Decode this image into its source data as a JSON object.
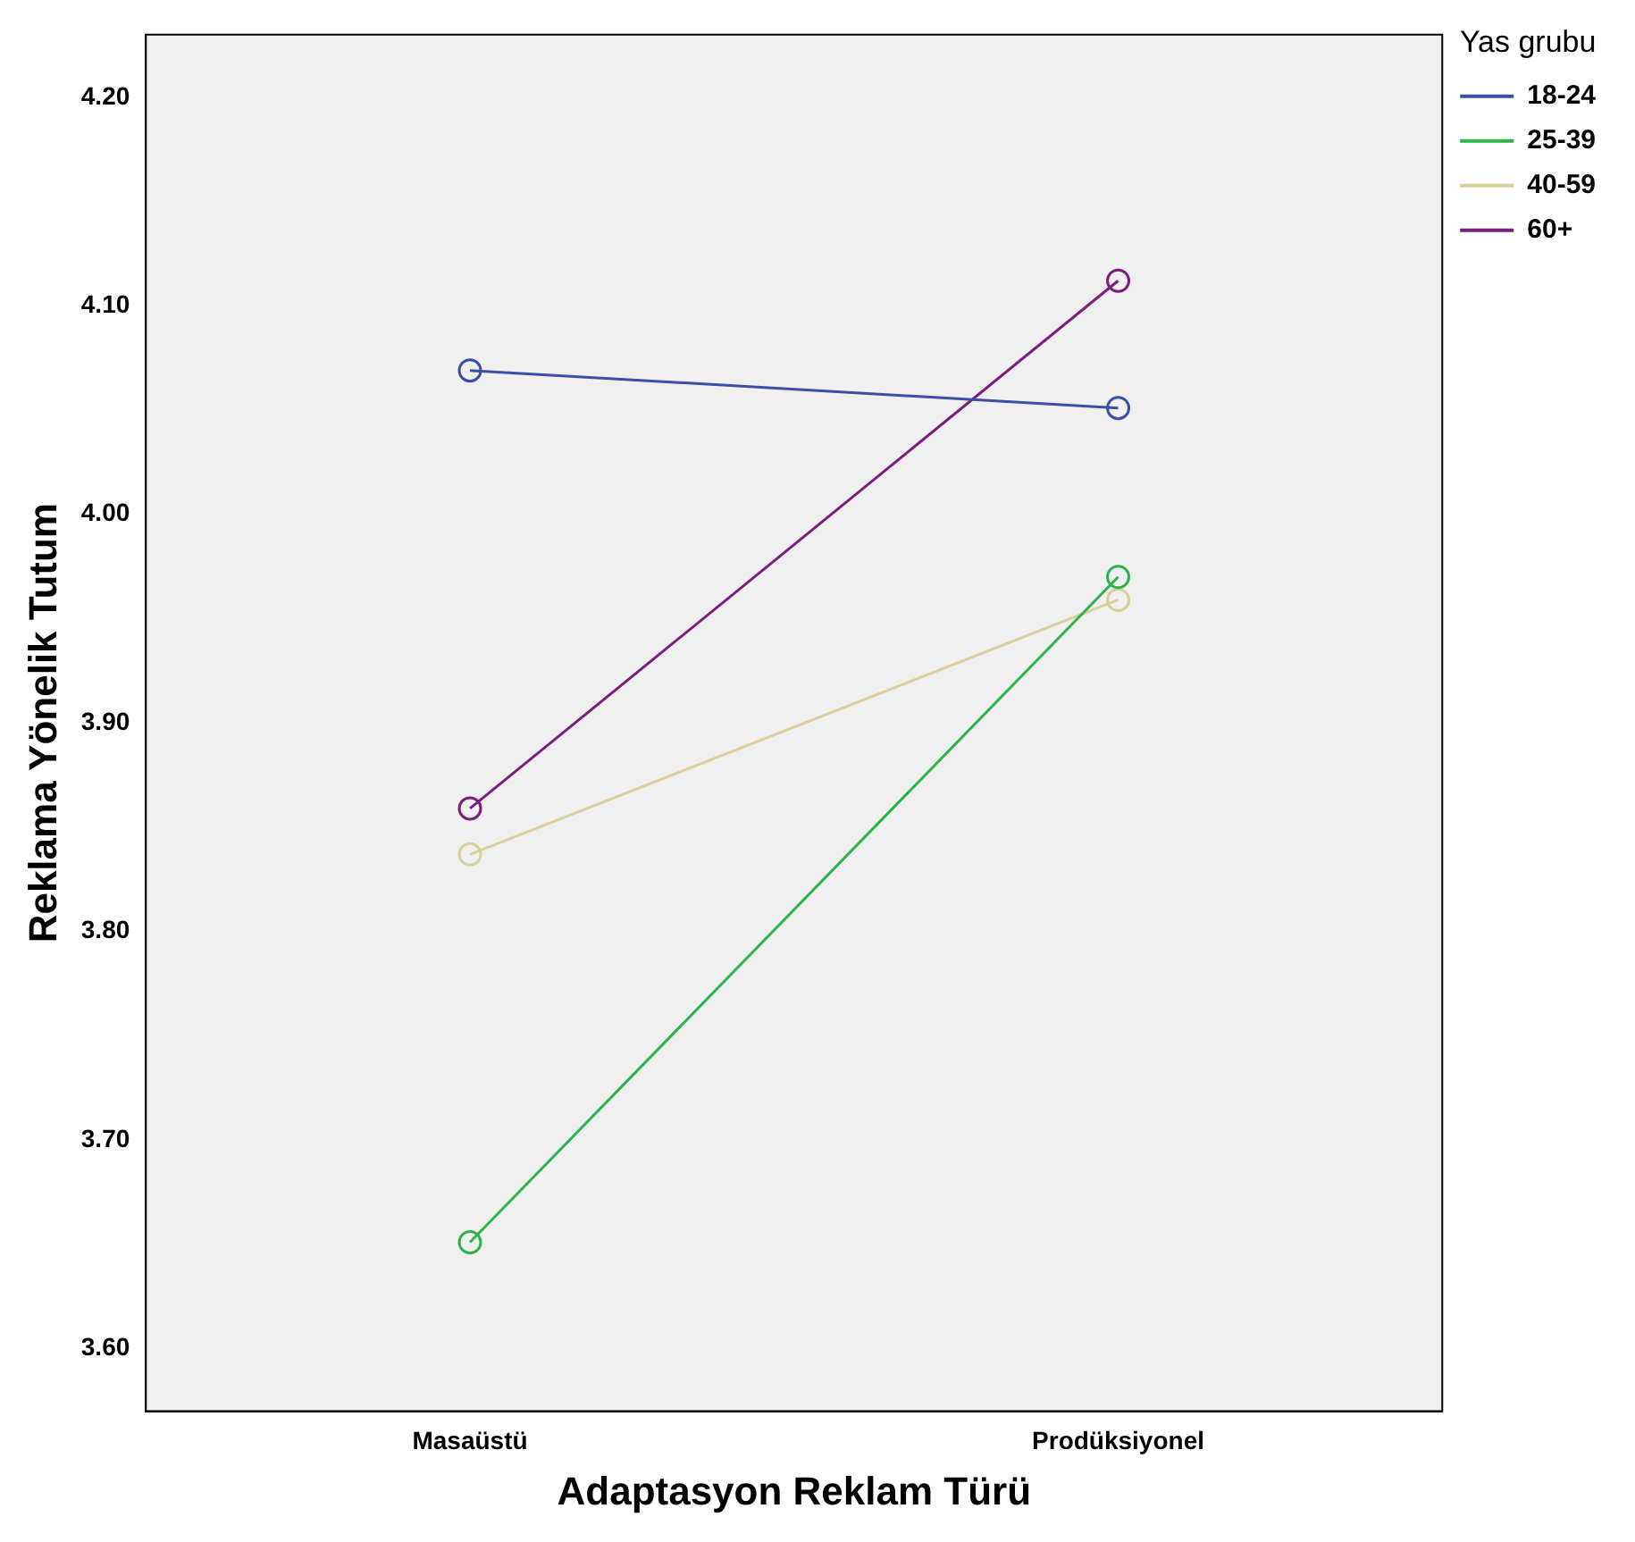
{
  "chart_data": {
    "type": "line",
    "xlabel": "Adaptasyon Reklam Türü",
    "ylabel": "Reklama Yönelik Tutum",
    "legend_title": "Yas grubu",
    "categories": [
      "Masaüstü",
      "Prodüksiyonel"
    ],
    "series": [
      {
        "name": "18-24",
        "color": "#3a4fa5",
        "values": [
          4.069,
          4.051
        ]
      },
      {
        "name": "25-39",
        "color": "#2db34a",
        "values": [
          3.651,
          3.97
        ]
      },
      {
        "name": "40-59",
        "color": "#d8d09a",
        "values": [
          3.837,
          3.959
        ]
      },
      {
        "name": "60+",
        "color": "#7a1f7e",
        "values": [
          3.859,
          4.112
        ]
      }
    ],
    "ylim": [
      3.57,
      4.23
    ],
    "yticks": [
      {
        "value": 3.6,
        "label": "3.60"
      },
      {
        "value": 3.7,
        "label": "3.70"
      },
      {
        "value": 3.8,
        "label": "3.80"
      },
      {
        "value": 3.9,
        "label": "3.90"
      },
      {
        "value": 4.0,
        "label": "4.00"
      },
      {
        "value": 4.1,
        "label": "4.10"
      },
      {
        "value": 4.2,
        "label": "4.20"
      }
    ],
    "grid": false,
    "legend": "top right",
    "marker": "circle",
    "line_style": "solid"
  }
}
